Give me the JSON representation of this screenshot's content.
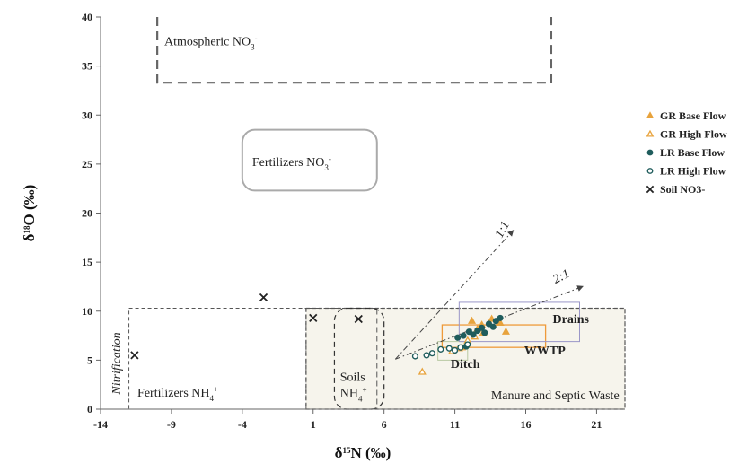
{
  "chart_data": {
    "type": "scatter",
    "xlabel": "δ15N (‰)",
    "ylabel": "δ18O (‰)",
    "xlim": [
      -14,
      23
    ],
    "ylim": [
      0,
      40
    ],
    "x_ticks": [
      -14,
      -9,
      -4,
      1,
      6,
      11,
      16,
      21
    ],
    "y_ticks": [
      0,
      5,
      10,
      15,
      20,
      25,
      30,
      35,
      40
    ],
    "grid": false,
    "legend_position": "right",
    "series": [
      {
        "name": "GR Base Flow",
        "marker": "triangle-filled",
        "color": "#e8a33d",
        "points": [
          [
            11.5,
            6.3
          ],
          [
            12.2,
            9.0
          ],
          [
            12.6,
            8.2
          ],
          [
            13.0,
            7.8
          ],
          [
            13.6,
            9.2
          ],
          [
            14.2,
            8.8
          ],
          [
            14.6,
            7.9
          ],
          [
            12.9,
            8.6
          ]
        ]
      },
      {
        "name": "GR High Flow",
        "marker": "triangle-open",
        "color": "#e8a33d",
        "points": [
          [
            8.7,
            3.8
          ],
          [
            10.8,
            5.9
          ],
          [
            11.3,
            6.2
          ],
          [
            11.9,
            7.0
          ],
          [
            12.4,
            7.4
          ]
        ]
      },
      {
        "name": "LR Base Flow",
        "marker": "circle-filled",
        "color": "#1f5c5c",
        "points": [
          [
            11.2,
            7.3
          ],
          [
            11.6,
            7.5
          ],
          [
            12.0,
            7.9
          ],
          [
            12.3,
            7.6
          ],
          [
            12.6,
            8.0
          ],
          [
            12.9,
            8.3
          ],
          [
            13.1,
            7.8
          ],
          [
            13.4,
            8.7
          ],
          [
            13.7,
            8.4
          ],
          [
            13.9,
            9.0
          ],
          [
            14.2,
            9.3
          ],
          [
            11.8,
            6.4
          ]
        ]
      },
      {
        "name": "LR High Flow",
        "marker": "circle-open",
        "color": "#1f5c5c",
        "points": [
          [
            8.2,
            5.4
          ],
          [
            9.0,
            5.5
          ],
          [
            9.4,
            5.7
          ],
          [
            10.0,
            6.1
          ],
          [
            10.6,
            6.2
          ],
          [
            11.0,
            6.0
          ],
          [
            11.4,
            6.3
          ],
          [
            11.9,
            6.6
          ]
        ]
      },
      {
        "name": "Soil NO3-",
        "marker": "x",
        "color": "#222222",
        "points": [
          [
            -11.6,
            5.5
          ],
          [
            -2.5,
            11.4
          ],
          [
            1.0,
            9.3
          ],
          [
            4.2,
            9.2
          ]
        ]
      }
    ],
    "regions": [
      {
        "label": "Atmospheric NO",
        "sub": "3",
        "sup": "-",
        "x": [
          -10,
          17.8
        ],
        "y": [
          33.3,
          40
        ],
        "style": "dashed-open-top",
        "label_anchor": [
          -9.5,
          37.1
        ]
      },
      {
        "label": "Fertilizers NO",
        "sub": "3",
        "sup": "-",
        "x": [
          -4,
          5.5
        ],
        "y": [
          22.3,
          28.5
        ],
        "style": "rounded-solid",
        "label_anchor": [
          -3.3,
          24.8
        ]
      },
      {
        "label": "Fertilizers NH",
        "sub": "4",
        "sup": "+",
        "x": [
          -12,
          23
        ],
        "y": [
          0,
          10.3
        ],
        "style": "dashed",
        "label_anchor": [
          -11.4,
          1.3
        ]
      },
      {
        "label": "Manure and Septic Waste",
        "sub": "",
        "sup": "",
        "x": [
          0.5,
          23
        ],
        "y": [
          0,
          10.3
        ],
        "style": "dashed-shaded",
        "label_anchor": [
          22.6,
          1.0
        ]
      },
      {
        "label": "Soils",
        "sub": "",
        "sup": "",
        "label2": "NH",
        "sub2": "4",
        "sup2": "+",
        "x": [
          2.5,
          6.0
        ],
        "y": [
          0,
          10.3
        ],
        "style": "rounded-dashed",
        "label_anchor": [
          2.9,
          2.9
        ]
      },
      {
        "label": "",
        "x": [
          0.5,
          5.5
        ],
        "y": [
          0,
          10.3
        ],
        "style": "thin-dashed"
      },
      {
        "label": "WWTP",
        "x": [
          10.1,
          17.4
        ],
        "y": [
          6.3,
          8.6
        ],
        "style": "orange-solid",
        "label_anchor": [
          15.9,
          5.6
        ]
      },
      {
        "label": "Drains",
        "x": [
          11.3,
          19.8
        ],
        "y": [
          6.9,
          10.9
        ],
        "style": "purple-solid",
        "label_anchor": [
          17.9,
          8.8
        ]
      },
      {
        "label": "Ditch",
        "x": [
          9.8,
          11.9
        ],
        "y": [
          5.0,
          6.9
        ],
        "style": "light-solid",
        "label_anchor": [
          10.7,
          4.2
        ]
      }
    ],
    "annotations": [
      {
        "text": "Nitrification",
        "anchor": [
          -12.6,
          1.5
        ],
        "rotate": -90
      },
      {
        "text": "1:1",
        "anchor": [
          14.3,
          17.4
        ],
        "rotate": -62
      },
      {
        "text": "2:1",
        "anchor": [
          18.1,
          12.8
        ],
        "rotate": -27
      }
    ],
    "lines": [
      {
        "name": "1:1",
        "from": [
          6.8,
          5.1
        ],
        "to": [
          15.1,
          18.2
        ],
        "style": "dashdot-arrow"
      },
      {
        "name": "2:1",
        "from": [
          6.8,
          5.1
        ],
        "to": [
          20.0,
          12.5
        ],
        "style": "dashdot-arrow"
      }
    ]
  }
}
